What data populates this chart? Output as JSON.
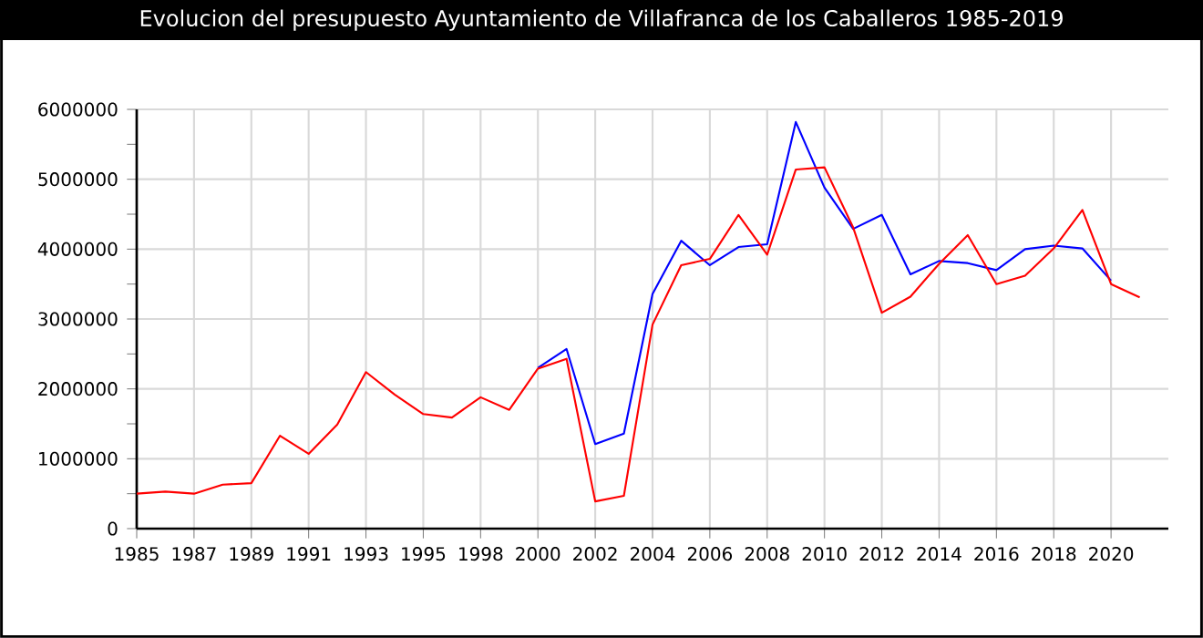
{
  "chart_data": {
    "type": "line",
    "title": "Evolucion del presupuesto Ayuntamiento de Villafranca de los Caballeros 1985-2019",
    "categories": [
      "1985",
      null,
      "1987",
      null,
      "1989",
      null,
      "1991",
      null,
      "1993",
      null,
      "1995",
      null,
      "1998",
      null,
      "2000",
      null,
      "2002",
      null,
      "2004",
      null,
      "2006",
      null,
      "2008",
      null,
      "2010",
      null,
      "2012",
      null,
      "2014",
      null,
      "2016",
      null,
      "2018",
      null,
      "2020",
      null,
      null
    ],
    "series": [
      {
        "color": "#0000ff",
        "values": [
          null,
          null,
          null,
          null,
          null,
          null,
          null,
          null,
          null,
          null,
          null,
          null,
          null,
          null,
          2300000,
          2570000,
          1210000,
          1360000,
          3360000,
          4120000,
          3770000,
          4030000,
          4070000,
          5820000,
          4880000,
          4290000,
          4490000,
          3640000,
          3830000,
          3800000,
          3700000,
          4000000,
          4050000,
          4010000,
          3550000,
          null,
          null
        ]
      },
      {
        "color": "#ff0000",
        "values": [
          500000,
          530000,
          500000,
          630000,
          650000,
          1330000,
          1070000,
          1490000,
          2240000,
          1920000,
          1640000,
          1590000,
          1880000,
          1700000,
          2290000,
          2430000,
          390000,
          470000,
          2920000,
          3770000,
          3860000,
          4490000,
          3920000,
          5140000,
          5170000,
          4310000,
          3090000,
          3320000,
          3790000,
          4200000,
          3500000,
          3620000,
          4010000,
          4560000,
          3500000,
          3310000,
          null
        ]
      }
    ],
    "ylim": [
      0,
      6000000
    ],
    "yticks": [
      0,
      {
        "value": 500000,
        "label": null
      },
      1000000,
      {
        "value": 1500000,
        "label": null
      },
      2000000,
      {
        "value": 2500000,
        "label": null
      },
      3000000,
      {
        "value": 3500000,
        "label": null
      },
      4000000,
      {
        "value": 4500000,
        "label": null
      },
      5000000,
      {
        "value": 5500000,
        "label": null
      },
      6000000
    ],
    "grid": true
  }
}
